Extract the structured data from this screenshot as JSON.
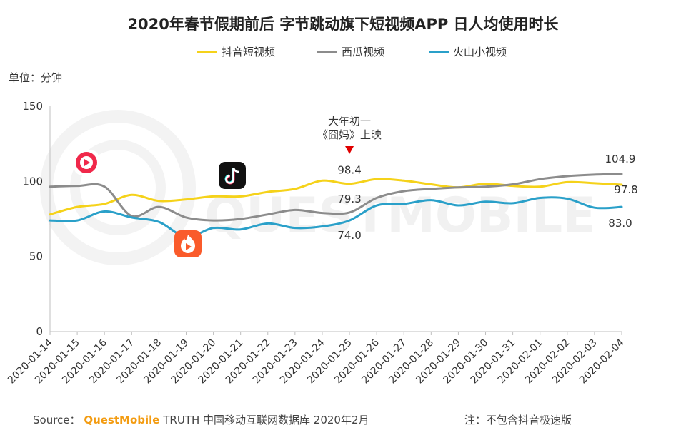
{
  "title": "2020年春节假期前后 字节跳动旗下短视频APP 日人均使用时长",
  "unit_label": "单位：分钟",
  "legend": [
    {
      "name": "抖音短视频",
      "color": "#f5d21a"
    },
    {
      "name": "西瓜视频",
      "color": "#8c8c8c"
    },
    {
      "name": "火山小视频",
      "color": "#2aa0c9"
    }
  ],
  "annotation": {
    "line1": "大年初一",
    "line2": "《囧妈》上映"
  },
  "footer": {
    "source_prefix": "Source：",
    "brand": "QuestMobile",
    "source_rest": "TRUTH 中国移动互联网数据库 2020年2月",
    "note": "注：不包含抖音极速版"
  },
  "icons": {
    "xigua": "xigua-video-icon",
    "douyin": "douyin-icon",
    "huoshan": "huoshan-video-icon"
  },
  "chart_data": {
    "type": "line",
    "categories": [
      "2020-01-14",
      "2020-01-15",
      "2020-01-16",
      "2020-01-17",
      "2020-01-18",
      "2020-01-19",
      "2020-01-20",
      "2020-01-21",
      "2020-01-22",
      "2020-01-23",
      "2020-01-24",
      "2020-01-25",
      "2020-01-26",
      "2020-01-27",
      "2020-01-28",
      "2020-01-29",
      "2020-01-30",
      "2020-01-31",
      "2020-02-01",
      "2020-02-02",
      "2020-02-03",
      "2020-02-04"
    ],
    "series": [
      {
        "name": "抖音短视频",
        "color": "#f5d21a",
        "values": [
          78,
          83,
          85,
          91,
          87,
          88,
          90,
          90,
          93,
          95,
          100.5,
          98.4,
          101.5,
          100.5,
          98,
          96,
          98.5,
          97,
          96.5,
          99.5,
          98.8,
          97.8
        ]
      },
      {
        "name": "西瓜视频",
        "color": "#8c8c8c",
        "values": [
          96.5,
          97,
          96.5,
          77,
          83,
          76,
          74,
          75,
          78,
          81,
          79,
          79.3,
          89,
          93.5,
          95,
          96,
          96.5,
          98,
          101.5,
          103.5,
          104.5,
          104.9
        ]
      },
      {
        "name": "火山小视频",
        "color": "#2aa0c9",
        "values": [
          74,
          74,
          80,
          76,
          73,
          63,
          69,
          68,
          72,
          69,
          70,
          74.0,
          84,
          85,
          87.5,
          84,
          86.5,
          85.5,
          89,
          88.5,
          82.5,
          83.0
        ]
      }
    ],
    "data_labels": [
      {
        "series": 0,
        "index": 11,
        "text": "98.4"
      },
      {
        "series": 1,
        "index": 11,
        "text": "79.3"
      },
      {
        "series": 2,
        "index": 11,
        "text": "74.0"
      },
      {
        "series": 1,
        "index": 21,
        "text": "104.9"
      },
      {
        "series": 0,
        "index": 21,
        "text": "97.8"
      },
      {
        "series": 2,
        "index": 21,
        "text": "83.0"
      }
    ],
    "annotation_index": 11,
    "ylim": [
      0,
      150
    ],
    "yticks": [
      0,
      50,
      100,
      150
    ],
    "grid": false,
    "watermark": "QUESTMOBILE"
  }
}
